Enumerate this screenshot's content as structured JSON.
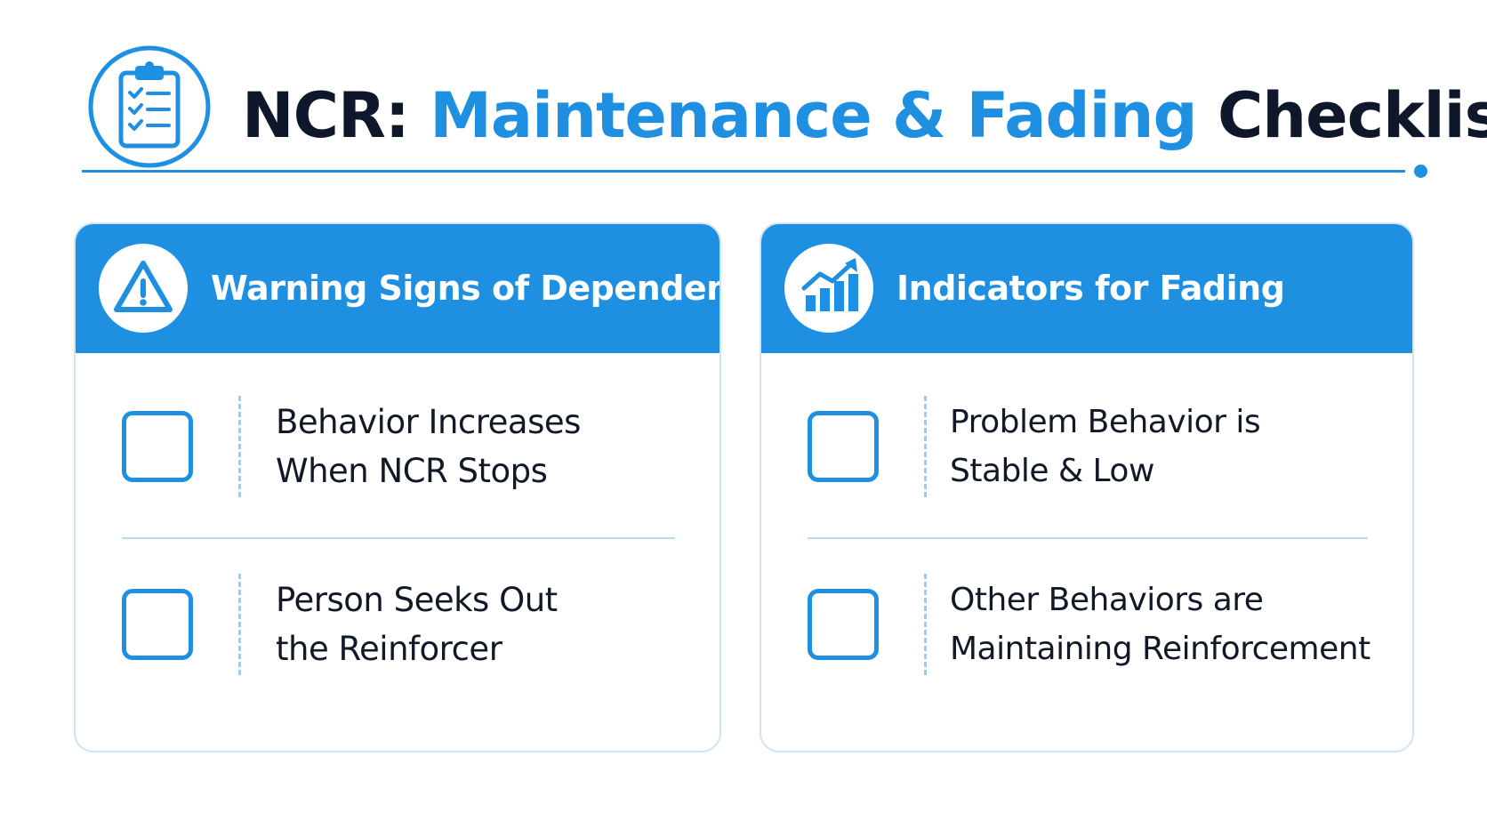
{
  "header": {
    "icon": "clipboard-checklist-icon",
    "title_prefix": "NCR:",
    "title_accent": "Maintenance & Fading",
    "title_suffix": "Checklist"
  },
  "colors": {
    "accent": "#1e8fe1",
    "title_dark": "#0f172a",
    "card_border": "#cfe4f6",
    "divider": "#b9dbf3"
  },
  "cards": [
    {
      "icon": "warning-triangle-icon",
      "title": "Warning Signs of Dependency",
      "items": [
        {
          "line1": "Behavior Increases",
          "line2": "When NCR Stops",
          "checked": false
        },
        {
          "line1": "Person Seeks Out",
          "line2": "the Reinforcer",
          "checked": false
        }
      ]
    },
    {
      "icon": "bar-chart-trend-up-icon",
      "title": "Indicators for Fading",
      "items": [
        {
          "line1": "Problem Behavior is",
          "line2": "Stable & Low",
          "checked": false
        },
        {
          "line1": "Other Behaviors are",
          "line2": "Maintaining Reinforcement",
          "checked": false
        }
      ]
    }
  ]
}
